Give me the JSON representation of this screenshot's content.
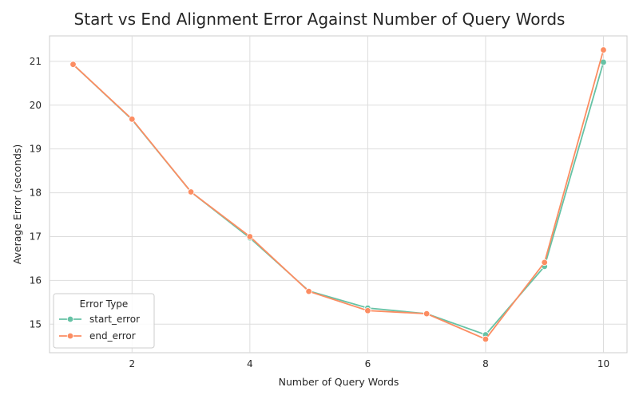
{
  "chart_data": {
    "type": "line",
    "title": "Start vs End Alignment Error Against Number of Query Words",
    "xlabel": "Number of Query Words",
    "ylabel": "Average Error (seconds)",
    "xlim": [
      0.6,
      10.4
    ],
    "ylim": [
      14.35,
      21.58
    ],
    "xticks": [
      2,
      4,
      6,
      8,
      10
    ],
    "yticks": [
      15,
      16,
      17,
      18,
      19,
      20,
      21
    ],
    "grid": true,
    "legend": {
      "title": "Error Type",
      "placement": "lower-left"
    },
    "x": [
      1,
      2,
      3,
      4,
      5,
      6,
      7,
      8,
      9,
      10
    ],
    "series": [
      {
        "name": "start_error",
        "color": "#66c2a5",
        "values": [
          20.93,
          19.67,
          18.02,
          16.97,
          15.76,
          15.37,
          15.24,
          14.76,
          16.32,
          20.98
        ]
      },
      {
        "name": "end_error",
        "color": "#fc8d62",
        "values": [
          20.93,
          19.68,
          18.02,
          17.0,
          15.75,
          15.31,
          15.24,
          14.66,
          16.41,
          21.26
        ]
      }
    ]
  }
}
